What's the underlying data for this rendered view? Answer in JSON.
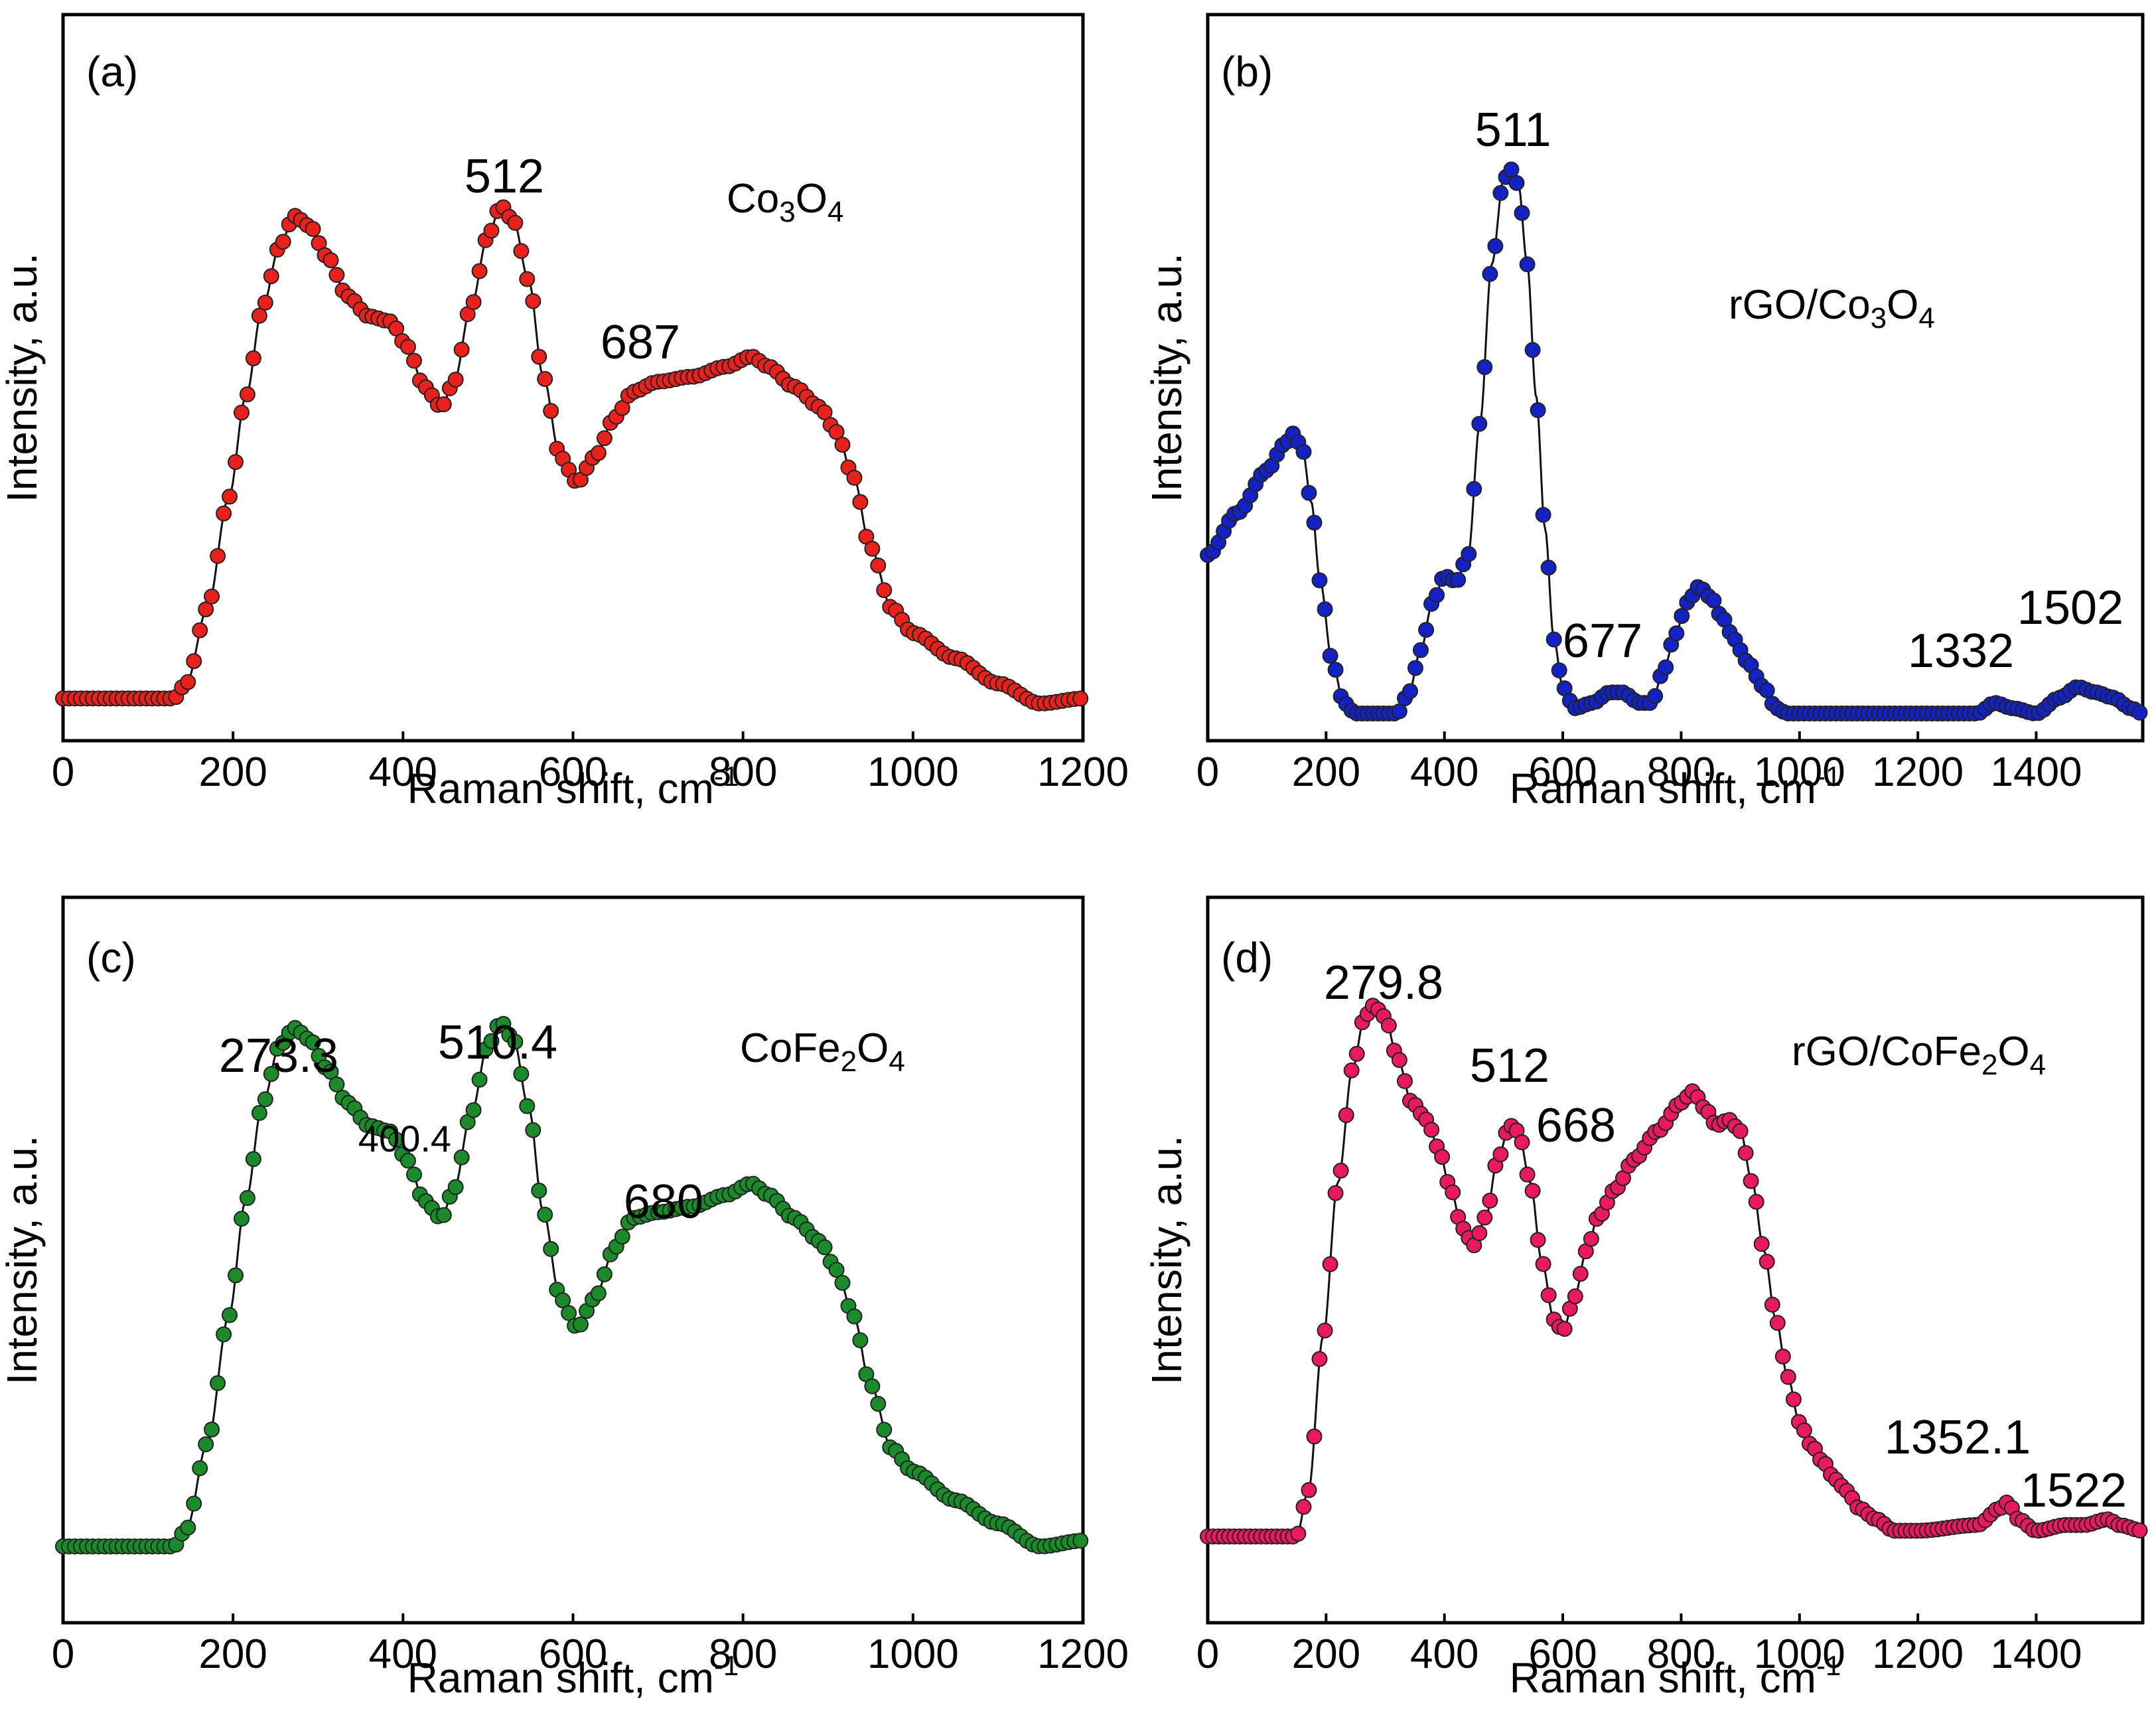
{
  "chart_data": [
    {
      "type": "line",
      "panel_label": "(a)",
      "sample": {
        "main": "Co",
        "sub1": "3",
        "mid": "O",
        "sub2": "4",
        "prefix": "",
        "suffix": ""
      },
      "xlabel": "Raman shift, cm",
      "xlabel_sup": "-1",
      "ylabel": "Intensity, a.u.",
      "xlim": [
        0,
        1200
      ],
      "ylim": [
        -5,
        100
      ],
      "xticks": [
        0,
        200,
        400,
        600,
        800,
        1000,
        1200
      ],
      "tick_labels": [
        "0",
        "200",
        "400",
        "600",
        "800",
        "1000",
        "1200"
      ],
      "color": "#e8211c",
      "anchors": [
        [
          0,
          2
        ],
        [
          130,
          2
        ],
        [
          145,
          5
        ],
        [
          170,
          20
        ],
        [
          195,
          42
        ],
        [
          215,
          62
        ],
        [
          235,
          80
        ],
        [
          255,
          92
        ],
        [
          272,
          98
        ],
        [
          290,
          96
        ],
        [
          310,
          90
        ],
        [
          335,
          82
        ],
        [
          360,
          78
        ],
        [
          385,
          77
        ],
        [
          405,
          72
        ],
        [
          425,
          64
        ],
        [
          445,
          60
        ],
        [
          460,
          65
        ],
        [
          480,
          80
        ],
        [
          500,
          94
        ],
        [
          515,
          100
        ],
        [
          530,
          97
        ],
        [
          548,
          85
        ],
        [
          565,
          66
        ],
        [
          585,
          50
        ],
        [
          605,
          45
        ],
        [
          625,
          50
        ],
        [
          650,
          58
        ],
        [
          670,
          63
        ],
        [
          700,
          65
        ],
        [
          740,
          66
        ],
        [
          780,
          68
        ],
        [
          810,
          70
        ],
        [
          830,
          68
        ],
        [
          860,
          64
        ],
        [
          890,
          60
        ],
        [
          910,
          55
        ],
        [
          930,
          46
        ],
        [
          950,
          32
        ],
        [
          975,
          20
        ],
        [
          1000,
          15
        ],
        [
          1050,
          10
        ],
        [
          1100,
          5
        ],
        [
          1150,
          1
        ],
        [
          1200,
          2
        ]
      ],
      "peaks": [
        {
          "label": "512",
          "x": 512,
          "y": 100
        },
        {
          "label": "687",
          "x": 687,
          "y": 66
        }
      ]
    },
    {
      "type": "line",
      "panel_label": "(b)",
      "sample": {
        "prefix": "rGO/",
        "main": "Co",
        "sub1": "3",
        "mid": "O",
        "sub2": "4",
        "suffix": ""
      },
      "xlabel": "Raman shift, cm",
      "xlabel_sup": "-1",
      "ylabel": "Intensity, a.u.",
      "xlim": [
        0,
        1580
      ],
      "ylim": [
        -3,
        115
      ],
      "xticks": [
        0,
        200,
        400,
        600,
        800,
        1000,
        1200,
        1400
      ],
      "tick_labels": [
        "0",
        "200",
        "400",
        "600",
        "800",
        "1000",
        "1200",
        "1400"
      ],
      "color": "#1522c3",
      "anchors": [
        [
          0,
          30
        ],
        [
          50,
          38
        ],
        [
          100,
          46
        ],
        [
          130,
          51
        ],
        [
          145,
          53
        ],
        [
          160,
          50
        ],
        [
          175,
          40
        ],
        [
          190,
          25
        ],
        [
          210,
          10
        ],
        [
          230,
          2
        ],
        [
          250,
          0
        ],
        [
          300,
          0
        ],
        [
          320,
          0
        ],
        [
          340,
          4
        ],
        [
          360,
          12
        ],
        [
          380,
          21
        ],
        [
          400,
          26
        ],
        [
          420,
          25
        ],
        [
          440,
          30
        ],
        [
          460,
          55
        ],
        [
          480,
          85
        ],
        [
          500,
          101
        ],
        [
          512,
          103
        ],
        [
          525,
          100
        ],
        [
          540,
          85
        ],
        [
          555,
          60
        ],
        [
          570,
          35
        ],
        [
          585,
          14
        ],
        [
          600,
          5
        ],
        [
          620,
          1
        ],
        [
          650,
          2
        ],
        [
          680,
          4
        ],
        [
          700,
          4
        ],
        [
          730,
          2
        ],
        [
          750,
          2
        ],
        [
          770,
          8
        ],
        [
          790,
          15
        ],
        [
          810,
          21
        ],
        [
          830,
          24
        ],
        [
          850,
          22
        ],
        [
          870,
          18
        ],
        [
          890,
          14
        ],
        [
          910,
          10
        ],
        [
          940,
          5
        ],
        [
          960,
          1
        ],
        [
          980,
          0
        ],
        [
          1300,
          0
        ],
        [
          1330,
          2
        ],
        [
          1360,
          1
        ],
        [
          1400,
          0
        ],
        [
          1440,
          3
        ],
        [
          1470,
          5
        ],
        [
          1500,
          4
        ],
        [
          1530,
          3
        ],
        [
          1560,
          1
        ],
        [
          1580,
          0
        ]
      ],
      "peaks": [
        {
          "label": "511",
          "x": 511,
          "y": 103
        },
        {
          "label": "677",
          "x": 677,
          "y": 4
        },
        {
          "label": "1332",
          "x": 1332,
          "y": 2
        },
        {
          "label": "1502",
          "x": 1502,
          "y": 5
        }
      ]
    },
    {
      "type": "line",
      "panel_label": "(c)",
      "sample": {
        "prefix": "",
        "main": "CoFe",
        "sub1": "2",
        "mid": "O",
        "sub2": "4",
        "suffix": ""
      },
      "xlabel": "Raman shift, cm",
      "xlabel_sup": "-1",
      "ylabel": "Intensity, a.u.",
      "xlim": [
        0,
        1200
      ],
      "ylim": [
        -3,
        115
      ],
      "xticks": [
        0,
        200,
        400,
        600,
        800,
        1000,
        1200
      ],
      "tick_labels": [
        "0",
        "200",
        "400",
        "600",
        "800",
        "1000",
        "1200"
      ],
      "color": "#1b8a2a",
      "anchors": [
        [
          0,
          0
        ],
        [
          130,
          0
        ],
        [
          145,
          3
        ],
        [
          170,
          18
        ],
        [
          195,
          40
        ],
        [
          215,
          60
        ],
        [
          235,
          77
        ],
        [
          255,
          87
        ],
        [
          272,
          90
        ],
        [
          290,
          88
        ],
        [
          310,
          83
        ],
        [
          335,
          77
        ],
        [
          360,
          73
        ],
        [
          385,
          72
        ],
        [
          405,
          67
        ],
        [
          425,
          60
        ],
        [
          445,
          57
        ],
        [
          460,
          62
        ],
        [
          480,
          75
        ],
        [
          500,
          87
        ],
        [
          515,
          91
        ],
        [
          530,
          88
        ],
        [
          548,
          76
        ],
        [
          565,
          58
        ],
        [
          585,
          43
        ],
        [
          605,
          38
        ],
        [
          625,
          43
        ],
        [
          650,
          52
        ],
        [
          670,
          57
        ],
        [
          700,
          58
        ],
        [
          740,
          59
        ],
        [
          780,
          61
        ],
        [
          810,
          63
        ],
        [
          830,
          61
        ],
        [
          860,
          57
        ],
        [
          890,
          53
        ],
        [
          910,
          48
        ],
        [
          930,
          40
        ],
        [
          950,
          28
        ],
        [
          975,
          17
        ],
        [
          1000,
          13
        ],
        [
          1050,
          8
        ],
        [
          1100,
          4
        ],
        [
          1150,
          0
        ],
        [
          1200,
          1
        ]
      ],
      "peaks": [
        {
          "label": "273.3",
          "x": 273.3,
          "y": 90
        },
        {
          "label": "400.4",
          "x": 400.4,
          "y": 72
        },
        {
          "label": "510.4",
          "x": 510.4,
          "y": 91
        },
        {
          "label": "680",
          "x": 680,
          "y": 58
        }
      ]
    },
    {
      "type": "line",
      "panel_label": "(d)",
      "sample": {
        "prefix": "rGO/",
        "main": "CoFe",
        "sub1": "2",
        "mid": "O",
        "sub2": "4",
        "suffix": ""
      },
      "xlabel": "Raman shift, cm",
      "xlabel_sup": "-1",
      "ylabel": "Intensity, a.u.",
      "xlim": [
        0,
        1580
      ],
      "ylim": [
        -3,
        115
      ],
      "xticks": [
        0,
        200,
        400,
        600,
        800,
        1000,
        1200,
        1400
      ],
      "tick_labels": [
        "0",
        "200",
        "400",
        "600",
        "800",
        "1000",
        "1200",
        "1400"
      ],
      "color": "#e8195f",
      "anchors": [
        [
          0,
          0
        ],
        [
          150,
          0
        ],
        [
          170,
          8
        ],
        [
          195,
          35
        ],
        [
          220,
          62
        ],
        [
          245,
          82
        ],
        [
          265,
          91
        ],
        [
          280,
          93
        ],
        [
          300,
          91
        ],
        [
          320,
          84
        ],
        [
          345,
          76
        ],
        [
          370,
          73
        ],
        [
          390,
          68
        ],
        [
          410,
          61
        ],
        [
          430,
          54
        ],
        [
          450,
          51
        ],
        [
          470,
          56
        ],
        [
          490,
          66
        ],
        [
          510,
          72
        ],
        [
          525,
          71
        ],
        [
          545,
          62
        ],
        [
          565,
          48
        ],
        [
          585,
          38
        ],
        [
          600,
          36
        ],
        [
          620,
          42
        ],
        [
          640,
          50
        ],
        [
          660,
          56
        ],
        [
          690,
          61
        ],
        [
          720,
          66
        ],
        [
          760,
          71
        ],
        [
          800,
          76
        ],
        [
          820,
          78
        ],
        [
          840,
          75
        ],
        [
          860,
          72
        ],
        [
          880,
          73
        ],
        [
          900,
          71
        ],
        [
          920,
          62
        ],
        [
          940,
          50
        ],
        [
          960,
          38
        ],
        [
          980,
          28
        ],
        [
          1000,
          20
        ],
        [
          1020,
          16
        ],
        [
          1040,
          13
        ],
        [
          1060,
          10
        ],
        [
          1080,
          8
        ],
        [
          1100,
          5
        ],
        [
          1130,
          3
        ],
        [
          1160,
          1
        ],
        [
          1200,
          1
        ],
        [
          1300,
          2
        ],
        [
          1340,
          5
        ],
        [
          1352,
          6
        ],
        [
          1370,
          3
        ],
        [
          1400,
          1
        ],
        [
          1450,
          2
        ],
        [
          1480,
          2
        ],
        [
          1522,
          3
        ],
        [
          1540,
          2
        ],
        [
          1580,
          1
        ]
      ],
      "peaks": [
        {
          "label": "279.8",
          "x": 279.8,
          "y": 93
        },
        {
          "label": "512",
          "x": 512,
          "y": 72
        },
        {
          "label": "668",
          "x": 668,
          "y": 58
        },
        {
          "label": "1352.1",
          "x": 1352.1,
          "y": 6
        },
        {
          "label": "1522",
          "x": 1522,
          "y": 3
        }
      ]
    }
  ]
}
